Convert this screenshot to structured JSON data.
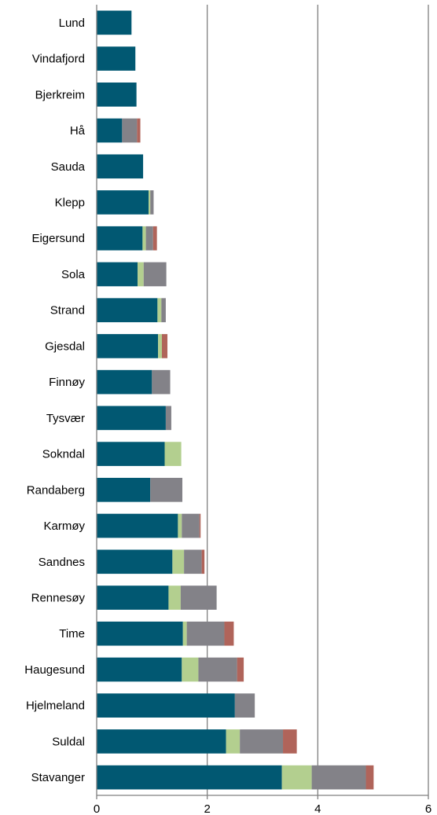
{
  "chart_data": {
    "type": "bar",
    "orientation": "horizontal",
    "stacked": true,
    "categories": [
      "Lund",
      "Vindafjord",
      "Bjerkreim",
      "Hå",
      "Sauda",
      "Klepp",
      "Eigersund",
      "Sola",
      "Strand",
      "Gjesdal",
      "Finnøy",
      "Tysvær",
      "Sokndal",
      "Randaberg",
      "Karmøy",
      "Sandnes",
      "Rennesøy",
      "Time",
      "Haugesund",
      "Hjelmeland",
      "Suldal",
      "Stavanger"
    ],
    "series": [
      {
        "color": "#015872",
        "values": [
          0.63,
          0.7,
          0.72,
          0.46,
          0.84,
          0.94,
          0.83,
          0.74,
          1.1,
          1.11,
          1.0,
          1.25,
          1.23,
          0.97,
          1.47,
          1.37,
          1.3,
          1.56,
          1.54,
          2.5,
          2.34,
          3.35
        ]
      },
      {
        "color": "#b3cf8f",
        "values": [
          0.0,
          0.0,
          0.0,
          0.0,
          0.0,
          0.03,
          0.06,
          0.11,
          0.07,
          0.07,
          0.0,
          0.0,
          0.3,
          0.0,
          0.07,
          0.21,
          0.22,
          0.07,
          0.3,
          0.0,
          0.25,
          0.54
        ]
      },
      {
        "color": "#838288",
        "values": [
          0.0,
          0.0,
          0.0,
          0.27,
          0.0,
          0.06,
          0.13,
          0.41,
          0.08,
          0.0,
          0.33,
          0.1,
          0.0,
          0.58,
          0.32,
          0.32,
          0.65,
          0.68,
          0.7,
          0.36,
          0.78,
          0.98
        ]
      },
      {
        "color": "#b0645a",
        "values": [
          0.0,
          0.0,
          0.0,
          0.06,
          0.0,
          0.0,
          0.07,
          0.0,
          0.0,
          0.1,
          0.0,
          0.0,
          0.0,
          0.0,
          0.02,
          0.05,
          0.0,
          0.17,
          0.12,
          0.0,
          0.25,
          0.14
        ]
      }
    ],
    "xlim": [
      0,
      6
    ],
    "xticks": [
      "0",
      "2",
      "4",
      "6"
    ],
    "grid": true,
    "legend": "none"
  }
}
